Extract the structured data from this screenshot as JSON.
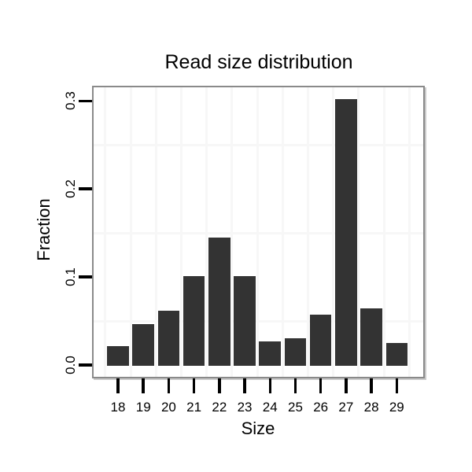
{
  "chart_data": {
    "type": "bar",
    "title": "Read size distribution",
    "xlabel": "Size",
    "ylabel": "Fraction",
    "categories": [
      "18",
      "19",
      "20",
      "21",
      "22",
      "23",
      "24",
      "25",
      "26",
      "27",
      "28",
      "29"
    ],
    "values": [
      0.022,
      0.047,
      0.063,
      0.102,
      0.146,
      0.102,
      0.028,
      0.031,
      0.058,
      0.303,
      0.065,
      0.026
    ],
    "y_tick_labels": [
      "0.0",
      "0.1",
      "0.2",
      "0.3"
    ],
    "y_tick_values": [
      0,
      0.1,
      0.2,
      0.3
    ],
    "minor_gridlines_y": [
      0.05,
      0.15,
      0.25
    ],
    "ylim": [
      0,
      0.315
    ],
    "grid": "minor-gridlines-only",
    "legend": "none",
    "colors": {
      "bar": "#333333",
      "panel_border": "#8a8a8a",
      "panel_shadow": "#c9c9c9",
      "gridline": "#f7f7f7",
      "tick": "#000000",
      "text": "#000000",
      "background": "#ffffff"
    }
  }
}
